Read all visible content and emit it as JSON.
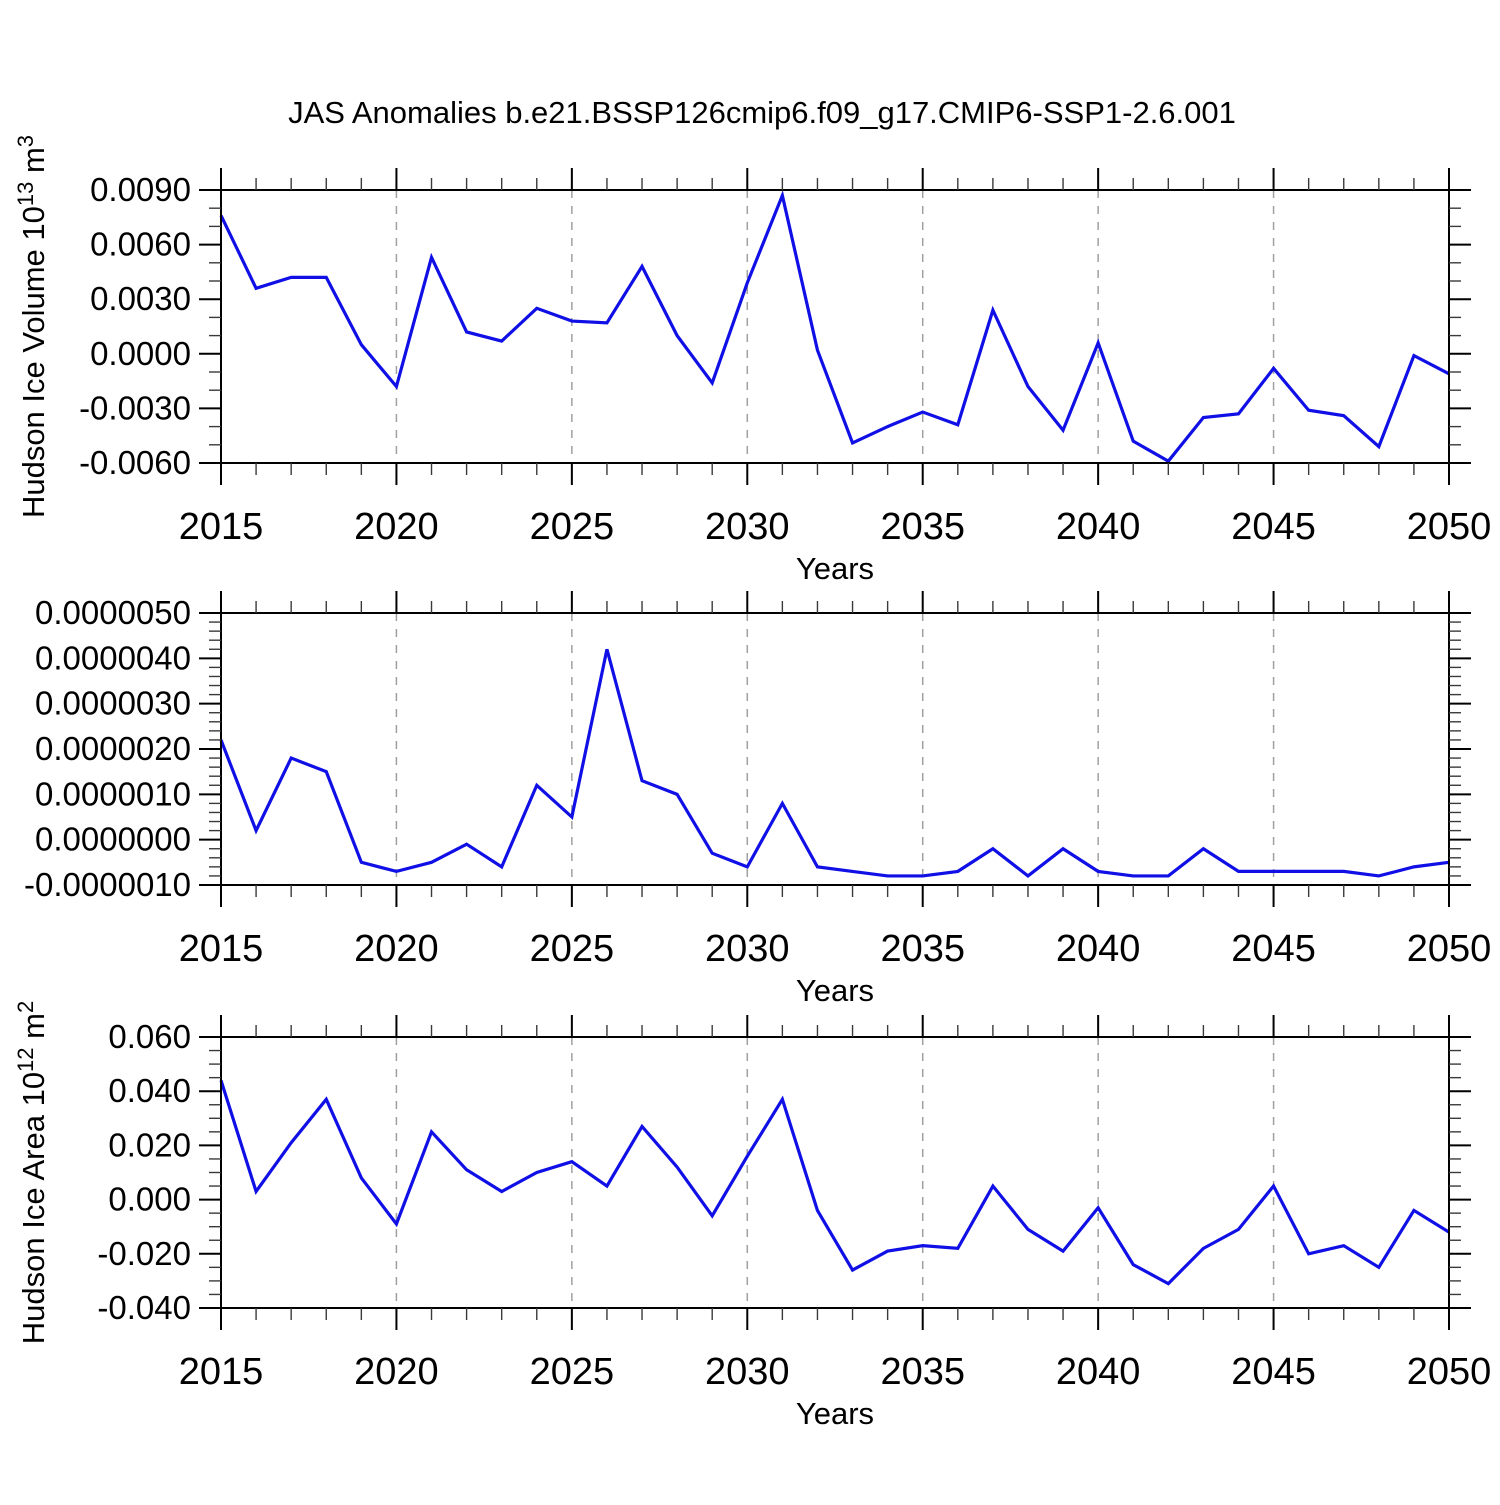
{
  "title": "JAS Anomalies b.e21.BSSP126cmip6.f09_g17.CMIP6-SSP1-2.6.001",
  "colors": {
    "line": "#0f0fe6",
    "grid": "#a0a0a0",
    "axis_major": "#000000",
    "axis_minor": "#3a3a3a",
    "frame": "#000000",
    "background": "#ffffff"
  },
  "x_axis": {
    "label": "Years",
    "min": 2015,
    "max": 2050,
    "major_tick_interval": 5,
    "minor_tick_interval": 1,
    "tick_labels": [
      "2015",
      "2020",
      "2025",
      "2030",
      "2035",
      "2040",
      "2045",
      "2050"
    ],
    "gridline_years": [
      2020,
      2025,
      2030,
      2035,
      2040,
      2045
    ]
  },
  "chart_data": [
    {
      "type": "line",
      "panel": "top",
      "ylabel": "Hudson Ice Volume 10^13 m^3",
      "ylabel_parts": [
        [
          "Hudson Ice Volume 10",
          0
        ],
        [
          "13",
          1
        ],
        [
          " m",
          0
        ],
        [
          "3",
          1
        ]
      ],
      "xlabel": "Years",
      "ylim": [
        -0.006,
        0.009
      ],
      "ytick_interval": 0.003,
      "yminor_interval": 0.001,
      "ytick_labels": [
        "-0.0060",
        "-0.0030",
        "0.0000",
        "0.0030",
        "0.0060",
        "0.0090"
      ],
      "grid": "vertical-dashed",
      "legend": "none",
      "years": [
        2015,
        2016,
        2017,
        2018,
        2019,
        2020,
        2021,
        2022,
        2023,
        2024,
        2025,
        2026,
        2027,
        2028,
        2029,
        2030,
        2031,
        2032,
        2033,
        2034,
        2035,
        2036,
        2037,
        2038,
        2039,
        2040,
        2041,
        2042,
        2043,
        2044,
        2045,
        2046,
        2047,
        2048,
        2049,
        2050
      ],
      "values": [
        0.0076,
        0.0036,
        0.0042,
        0.0042,
        0.0005,
        -0.0018,
        0.0053,
        0.0012,
        0.0007,
        0.0025,
        0.0018,
        0.0017,
        0.0048,
        0.001,
        -0.0016,
        0.0039,
        0.0087,
        0.0002,
        -0.0049,
        -0.004,
        -0.0032,
        -0.0039,
        0.0024,
        -0.0018,
        -0.0042,
        0.0006,
        -0.0048,
        -0.0059,
        -0.0035,
        -0.0033,
        -0.0008,
        -0.0031,
        -0.0034,
        -0.0051,
        -0.0001,
        -0.0011
      ]
    },
    {
      "type": "line",
      "panel": "middle",
      "ylabel": "",
      "ylabel_parts": [],
      "xlabel": "Years",
      "ylim": [
        -1e-06,
        5e-06
      ],
      "ytick_interval": 1e-06,
      "yminor_interval": 2e-07,
      "ytick_labels": [
        "-0.0000010",
        "0.0000000",
        "0.0000010",
        "0.0000020",
        "0.0000030",
        "0.0000040",
        "0.0000050"
      ],
      "grid": "vertical-dashed",
      "legend": "none",
      "years": [
        2015,
        2016,
        2017,
        2018,
        2019,
        2020,
        2021,
        2022,
        2023,
        2024,
        2025,
        2026,
        2027,
        2028,
        2029,
        2030,
        2031,
        2032,
        2033,
        2034,
        2035,
        2036,
        2037,
        2038,
        2039,
        2040,
        2041,
        2042,
        2043,
        2044,
        2045,
        2046,
        2047,
        2048,
        2049,
        2050
      ],
      "values": [
        2.2e-06,
        2e-07,
        1.8e-06,
        1.5e-06,
        -5e-07,
        -7e-07,
        -5e-07,
        -1e-07,
        -6e-07,
        1.2e-06,
        5e-07,
        4.2e-06,
        1.3e-06,
        1e-06,
        -3e-07,
        -6e-07,
        8e-07,
        -6e-07,
        -7e-07,
        -8e-07,
        -8e-07,
        -7e-07,
        -2e-07,
        -8e-07,
        -2e-07,
        -7e-07,
        -8e-07,
        -8e-07,
        -2e-07,
        -7e-07,
        -7e-07,
        -7e-07,
        -7e-07,
        -8e-07,
        -6e-07,
        -5e-07
      ]
    },
    {
      "type": "line",
      "panel": "bottom",
      "ylabel": "Hudson Ice Area 10^12 m^2",
      "ylabel_parts": [
        [
          "Hudson Ice Area 10",
          0
        ],
        [
          "12",
          1
        ],
        [
          " m",
          0
        ],
        [
          "2",
          1
        ]
      ],
      "xlabel": "Years",
      "ylim": [
        -0.04,
        0.06
      ],
      "ytick_interval": 0.02,
      "yminor_interval": 0.005,
      "ytick_labels": [
        "-0.040",
        "-0.020",
        "0.000",
        "0.020",
        "0.040",
        "0.060"
      ],
      "grid": "vertical-dashed",
      "legend": "none",
      "years": [
        2015,
        2016,
        2017,
        2018,
        2019,
        2020,
        2021,
        2022,
        2023,
        2024,
        2025,
        2026,
        2027,
        2028,
        2029,
        2030,
        2031,
        2032,
        2033,
        2034,
        2035,
        2036,
        2037,
        2038,
        2039,
        2040,
        2041,
        2042,
        2043,
        2044,
        2045,
        2046,
        2047,
        2048,
        2049,
        2050
      ],
      "values": [
        0.044,
        0.003,
        0.021,
        0.037,
        0.008,
        -0.009,
        0.025,
        0.011,
        0.003,
        0.01,
        0.014,
        0.005,
        0.027,
        0.012,
        -0.006,
        0.016,
        0.037,
        -0.004,
        -0.026,
        -0.019,
        -0.017,
        -0.018,
        0.005,
        -0.011,
        -0.019,
        -0.003,
        -0.024,
        -0.031,
        -0.018,
        -0.011,
        0.005,
        -0.02,
        -0.017,
        -0.025,
        -0.004,
        -0.012
      ]
    }
  ]
}
